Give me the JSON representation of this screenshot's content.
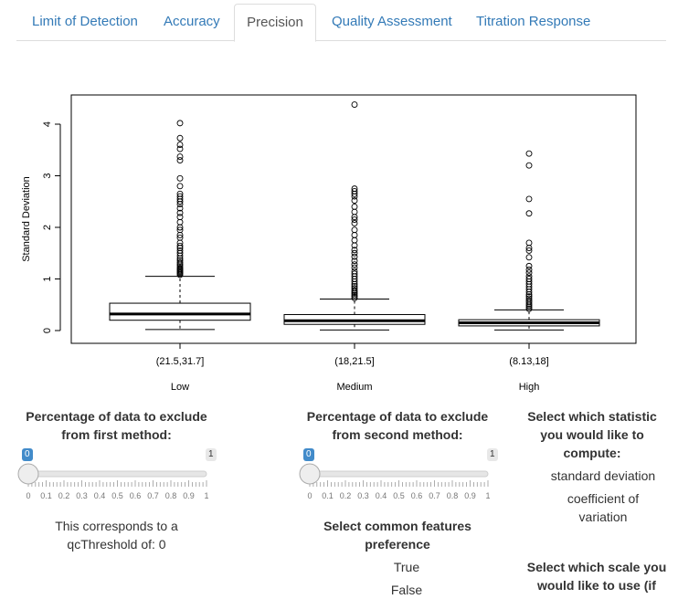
{
  "tabs": [
    {
      "label": "Limit of Detection",
      "active": false
    },
    {
      "label": "Accuracy",
      "active": false
    },
    {
      "label": "Precision",
      "active": true
    },
    {
      "label": "Quality Assessment",
      "active": false
    },
    {
      "label": "Titration Response",
      "active": false
    }
  ],
  "chart_data": {
    "type": "box",
    "ylabel": "Standard Deviation",
    "ylim": [
      0,
      4.4
    ],
    "yticks": [
      "0",
      "1",
      "2",
      "3",
      "4"
    ],
    "categories": [
      "(21.5,31.7]",
      "(18,21.5]",
      "(8.13,18]"
    ],
    "group_labels": [
      "Low",
      "Medium",
      "High"
    ],
    "boxes": [
      {
        "whisker_low": 0.02,
        "q1": 0.2,
        "median": 0.32,
        "q3": 0.53,
        "whisker_high": 1.05,
        "outliers": [
          1.08,
          1.1,
          1.12,
          1.14,
          1.16,
          1.18,
          1.2,
          1.23,
          1.26,
          1.29,
          1.32,
          1.36,
          1.4,
          1.45,
          1.5,
          1.55,
          1.6,
          1.64,
          1.7,
          1.8,
          1.85,
          1.95,
          2.0,
          2.1,
          2.2,
          2.28,
          2.37,
          2.45,
          2.5,
          2.55,
          2.6,
          2.65,
          2.8,
          2.95,
          3.3,
          3.37,
          3.52,
          3.6,
          3.73,
          4.02
        ]
      },
      {
        "whisker_low": 0.01,
        "q1": 0.12,
        "median": 0.19,
        "q3": 0.31,
        "whisker_high": 0.61,
        "outliers": [
          0.63,
          0.66,
          0.69,
          0.72,
          0.75,
          0.78,
          0.82,
          0.86,
          0.9,
          0.95,
          1.0,
          1.05,
          1.1,
          1.15,
          1.22,
          1.28,
          1.35,
          1.43,
          1.5,
          1.56,
          1.65,
          1.75,
          1.85,
          1.95,
          2.08,
          2.15,
          2.2,
          2.3,
          2.4,
          2.52,
          2.6,
          2.65,
          2.7,
          2.75,
          4.38
        ]
      },
      {
        "whisker_low": 0.01,
        "q1": 0.09,
        "median": 0.15,
        "q3": 0.21,
        "whisker_high": 0.4,
        "outliers": [
          0.42,
          0.45,
          0.48,
          0.51,
          0.55,
          0.58,
          0.62,
          0.66,
          0.7,
          0.75,
          0.8,
          0.85,
          0.9,
          0.95,
          1.0,
          1.05,
          1.12,
          1.18,
          1.25,
          1.42,
          1.55,
          1.6,
          1.7,
          2.27,
          2.55,
          3.2,
          3.43
        ]
      }
    ]
  },
  "slider1": {
    "heading": "Percentage of data to exclude from first method:",
    "value": "0",
    "max": "1",
    "ticks": [
      "0",
      "0.1",
      "0.2",
      "0.3",
      "0.4",
      "0.5",
      "0.6",
      "0.7",
      "0.8",
      "0.9",
      "1"
    ]
  },
  "slider1_info": "This corresponds to a qcThreshold of: 0",
  "slider2": {
    "heading": "Percentage of data to exclude from second method:",
    "value": "0",
    "max": "1",
    "ticks": [
      "0",
      "0.1",
      "0.2",
      "0.3",
      "0.4",
      "0.5",
      "0.6",
      "0.7",
      "0.8",
      "0.9",
      "1"
    ]
  },
  "common_features": {
    "heading": "Select common features preference",
    "options": [
      "True",
      "False"
    ]
  },
  "statistic": {
    "heading": "Select which statistic you would like to compute:",
    "options": [
      "standard deviation",
      "coefficient of variation"
    ]
  },
  "scale": {
    "heading": "Select which scale you would like to use (if"
  },
  "colors": {
    "link": "#337ab7",
    "badge_blue": "#428bca",
    "badge_gray": "#e8e8e8"
  }
}
